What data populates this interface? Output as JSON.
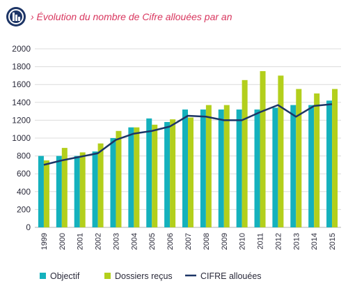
{
  "title": "› Évolution du nombre de Cifre allouées par an",
  "colors": {
    "objectif": "#14b1bd",
    "dossiers": "#b3cf1c",
    "cifre": "#1d3566",
    "title": "#d8365e",
    "logo": "#1d3566"
  },
  "chart_data": {
    "type": "bar",
    "title": "› Évolution du nombre de Cifre allouées par an",
    "xlabel": "",
    "ylabel": "",
    "ylim": [
      0,
      2000
    ],
    "yticks": [
      "0",
      "200",
      "400",
      "600",
      "800",
      "1000",
      "1200",
      "1400",
      "1600",
      "1800",
      "2000"
    ],
    "grid": true,
    "legend_position": "bottom",
    "categories": [
      "1999",
      "2000",
      "2001",
      "2002",
      "2003",
      "2004",
      "2005",
      "2006",
      "2007",
      "2008",
      "2009",
      "2010",
      "2011",
      "2012",
      "2013",
      "2014",
      "2015"
    ],
    "series": [
      {
        "name": "Objectif",
        "type": "bar",
        "values": [
          800,
          800,
          800,
          850,
          1000,
          1120,
          1220,
          1180,
          1320,
          1320,
          1320,
          1320,
          1320,
          1340,
          1370,
          1370,
          1420
        ]
      },
      {
        "name": "Dossiers reçus",
        "type": "bar",
        "values": [
          750,
          890,
          840,
          940,
          1080,
          1120,
          1150,
          1210,
          1230,
          1370,
          1370,
          1650,
          1750,
          1700,
          1550,
          1500,
          1550
        ]
      },
      {
        "name": "CIFRE allouées",
        "type": "line",
        "values": [
          700,
          750,
          790,
          830,
          980,
          1050,
          1080,
          1130,
          1250,
          1240,
          1200,
          1200,
          1290,
          1370,
          1240,
          1360,
          1380
        ]
      }
    ]
  }
}
